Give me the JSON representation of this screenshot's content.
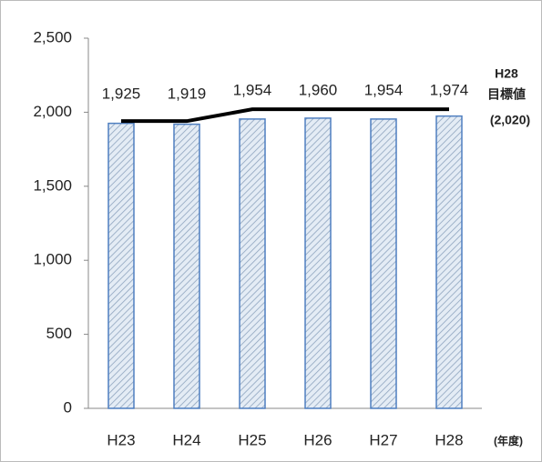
{
  "chart_data": {
    "type": "bar",
    "categories": [
      "H23",
      "H24",
      "H25",
      "H26",
      "H27",
      "H28"
    ],
    "values": [
      1925,
      1919,
      1954,
      1960,
      1954,
      1974
    ],
    "value_labels": [
      "1,925",
      "1,919",
      "1,954",
      "1,960",
      "1,954",
      "1,974"
    ],
    "color": "#4f7fc0",
    "target_values": [
      1940,
      1940,
      2020,
      2020,
      2020,
      2020
    ],
    "target_color": "#000000",
    "ylim": [
      0,
      2500
    ],
    "yticks": [
      0,
      {
        "value": 500,
        "label": "500"
      },
      {
        "value": 1000,
        "label": "1,000"
      },
      {
        "value": 1500,
        "label": "1,500"
      },
      {
        "value": 2000,
        "label": "2,000"
      },
      {
        "value": 2500,
        "label": "2,500"
      }
    ],
    "annotations": [
      "H28",
      "目標値",
      "(2,020)"
    ],
    "x_unit": "(年度)"
  }
}
